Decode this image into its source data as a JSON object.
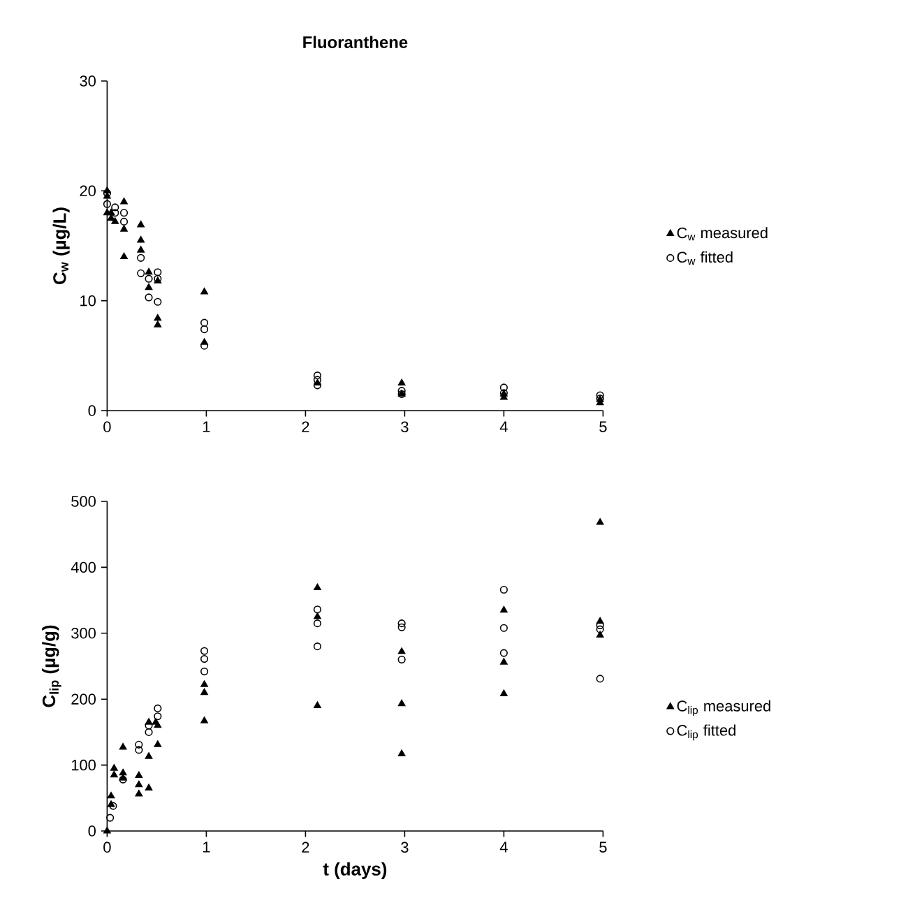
{
  "chart_data": [
    {
      "type": "scatter",
      "title": "Fluoranthene",
      "ylabel": "C$_{w}$ (µg/L)",
      "xlim": [
        0,
        5
      ],
      "ylim": [
        0,
        30
      ],
      "xticks": [
        0,
        1,
        2,
        3,
        4,
        5
      ],
      "yticks": [
        0,
        10,
        20,
        30
      ],
      "legend": "right",
      "grid": false,
      "series": [
        {
          "name": "C$_{w}$ measured",
          "color": "#000000",
          "marker": "triangle",
          "x": [
            0,
            0,
            0,
            0.04,
            0.04,
            0.08,
            0.17,
            0.17,
            0.17,
            0.34,
            0.34,
            0.34,
            0.42,
            0.42,
            0.51,
            0.51,
            0.51,
            0.98,
            0.98,
            2.12,
            2.97,
            2.97,
            4.0,
            4.0,
            4.97,
            4.97
          ],
          "values": [
            20,
            19.5,
            18,
            18,
            17.5,
            17.2,
            19,
            16.5,
            14,
            16.9,
            15.5,
            14.6,
            12.6,
            11.2,
            11.8,
            8.4,
            7.8,
            10.8,
            6.2,
            2.5,
            2.5,
            1.5,
            1.5,
            1.2,
            1,
            0.7
          ]
        },
        {
          "name": "C$_{w}$ fitted",
          "color": "#000000",
          "marker": "circle",
          "x": [
            0,
            0,
            0.08,
            0.08,
            0.17,
            0.17,
            0.34,
            0.34,
            0.42,
            0.42,
            0.51,
            0.51,
            0.51,
            0.98,
            0.98,
            0.98,
            2.12,
            2.12,
            2.12,
            2.97,
            2.97,
            4.0,
            4.0,
            4.97,
            4.97
          ],
          "values": [
            19.8,
            18.8,
            18.5,
            18,
            18,
            17.2,
            13.9,
            12.5,
            10.3,
            12,
            12.6,
            12,
            9.9,
            8,
            7.4,
            5.9,
            3.2,
            2.8,
            2.3,
            1.8,
            1.5,
            2.1,
            1.6,
            1.4,
            1.1
          ]
        }
      ]
    },
    {
      "type": "scatter",
      "xlabel": "t (days)",
      "ylabel": "C$_{lip}$ (µg/g)",
      "xlim": [
        0,
        5
      ],
      "ylim": [
        0,
        500
      ],
      "xticks": [
        0,
        1,
        2,
        3,
        4,
        5
      ],
      "yticks": [
        0,
        100,
        200,
        300,
        400,
        500
      ],
      "legend": "right",
      "grid": false,
      "series": [
        {
          "name": "C$_{lip}$ measured",
          "color": "#000000",
          "marker": "triangle",
          "x": [
            0,
            0.04,
            0.04,
            0.07,
            0.07,
            0.16,
            0.16,
            0.16,
            0.32,
            0.32,
            0.32,
            0.42,
            0.42,
            0.42,
            0.49,
            0.51,
            0.51,
            0.98,
            0.98,
            0.98,
            2.12,
            2.12,
            2.12,
            2.97,
            2.97,
            2.97,
            4.0,
            4.0,
            4.0,
            4.97,
            4.97,
            4.97
          ],
          "values": [
            0,
            53,
            40,
            95,
            85,
            88,
            80,
            127,
            84,
            70,
            56,
            65,
            113,
            165,
            165,
            131,
            160,
            222,
            210,
            167,
            369,
            325,
            190,
            272,
            193,
            117,
            335,
            256,
            208,
            468,
            318,
            297
          ]
        },
        {
          "name": "C$_{lip}$ fitted",
          "color": "#000000",
          "marker": "circle",
          "x": [
            0.03,
            0.06,
            0.16,
            0.32,
            0.32,
            0.42,
            0.42,
            0.51,
            0.51,
            0.98,
            0.98,
            0.98,
            2.12,
            2.12,
            2.12,
            2.97,
            2.97,
            2.97,
            4.0,
            4.0,
            4.0,
            4.97,
            4.97,
            4.97
          ],
          "values": [
            20,
            38,
            78,
            131,
            123,
            150,
            160,
            186,
            174,
            273,
            261,
            242,
            336,
            315,
            280,
            315,
            309,
            260,
            366,
            308,
            270,
            312,
            306,
            231
          ]
        }
      ]
    }
  ]
}
